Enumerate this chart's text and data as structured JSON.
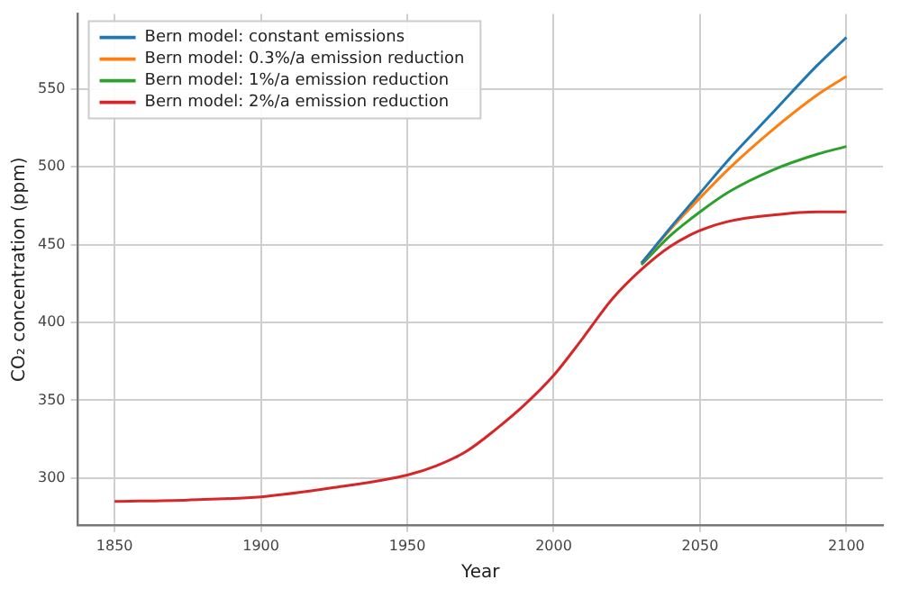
{
  "chart_data": {
    "type": "line",
    "xlabel": "Year",
    "ylabel": "CO₂ concentration (ppm)",
    "x": [
      1850,
      1875,
      1900,
      1925,
      1950,
      1960,
      1970,
      1980,
      1990,
      2000,
      2010,
      2020,
      2030,
      2040,
      2050,
      2060,
      2075,
      2090,
      2100
    ],
    "series": [
      {
        "name": "Bern model: constant emissions",
        "color": "#1f77b4",
        "values": [
          null,
          null,
          null,
          null,
          null,
          null,
          null,
          null,
          null,
          null,
          null,
          null,
          438,
          461,
          483,
          505,
          535,
          565,
          583
        ]
      },
      {
        "name": "Bern model: 0.3%/a emission reduction",
        "color": "#ff7f0e",
        "values": [
          null,
          null,
          null,
          null,
          null,
          null,
          null,
          null,
          null,
          null,
          null,
          null,
          438,
          460,
          480,
          499,
          524,
          546,
          558
        ]
      },
      {
        "name": "Bern model: 1%/a emission reduction",
        "color": "#2ca02c",
        "values": [
          null,
          null,
          null,
          null,
          null,
          null,
          null,
          null,
          null,
          null,
          null,
          null,
          437,
          456,
          471,
          484,
          498,
          508,
          513
        ]
      },
      {
        "name": "Bern model: 2%/a emission reduction",
        "color": "#d62728",
        "values": [
          285,
          286,
          288,
          294,
          302,
          308,
          317,
          331,
          347,
          366,
          390,
          415,
          434,
          449,
          459,
          465,
          469,
          471,
          471
        ]
      }
    ],
    "xlim": [
      1837.5,
      2112.5
    ],
    "xticks": [
      1850,
      1900,
      1950,
      2000,
      2050,
      2100
    ],
    "ylim": [
      270,
      598
    ],
    "yticks": [
      300,
      350,
      400,
      450,
      500,
      550
    ],
    "grid": true,
    "legend": "top left",
    "marker": "none",
    "line_style": "solid"
  }
}
